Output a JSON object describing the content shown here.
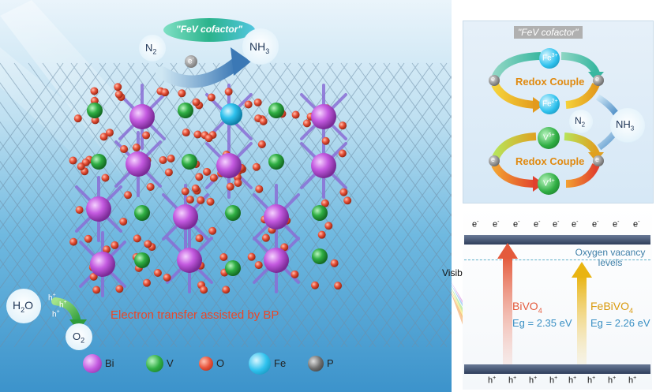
{
  "main": {
    "cofactor_label": "\"FeV cofactor\"",
    "n2_label": "N",
    "n2_sub": "2",
    "electron_label": "e",
    "electron_sup": "-",
    "nh3_label": "NH",
    "nh3_sub": "3",
    "h2o_label": "H",
    "h2o_sub": "2",
    "h2o_tail": "O",
    "hplus_label": "h",
    "hplus_sup": "+",
    "o2_label": "O",
    "o2_sub": "2",
    "transfer_caption": "Electron transfer assisted by BP",
    "legend": [
      {
        "label": "Bi",
        "color": "#c45ae0"
      },
      {
        "label": "V",
        "color": "#2fae43"
      },
      {
        "label": "O",
        "color": "#e8523a"
      },
      {
        "label": "Fe",
        "color": "#2fc2ee"
      },
      {
        "label": "P",
        "color": "#6f6f6f"
      }
    ]
  },
  "cycle": {
    "title": "\"FeV cofactor\"",
    "fe3": "Fe",
    "fe3_sup": "3+",
    "fe2": "Fe",
    "fe2_sup": "2+",
    "v5": "V",
    "v5_sup": "5+",
    "v4": "V",
    "v4_sup": "4+",
    "redox_top": "Redox Couple",
    "redox_bottom": "Redox Couple",
    "n2": "N",
    "n2_sub": "2",
    "nh3": "NH",
    "nh3_sub": "3",
    "electron": "e"
  },
  "bands": {
    "electron_symbol": "e",
    "electron_sup": "-",
    "hole_symbol": "h",
    "hole_sup": "+",
    "vacancy_label": "Oxygen vacancy levels",
    "light_label": "Visible light",
    "bivo4_name": "BiVO",
    "bivo4_sub": "4",
    "bivo4_eg": "Eg = 2.35 eV",
    "febivo4_name": "FeBiVO",
    "febivo4_sub": "4",
    "febivo4_eg": "Eg = 2.26 eV",
    "colors": {
      "bivo4": "#e45a3c",
      "febivo4": "#d99a0c",
      "band": "#3a4a6a"
    }
  }
}
